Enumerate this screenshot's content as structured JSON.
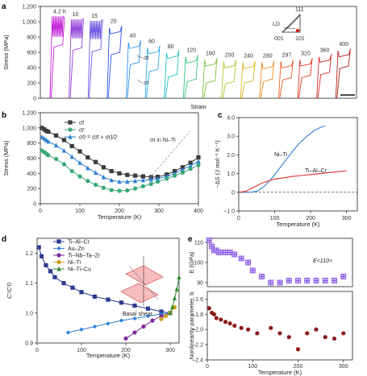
{
  "chart_data": [
    {
      "panel": "a",
      "type": "line",
      "xlabel": "Strain",
      "ylabel": "Stress (MPa)",
      "ylim": [
        0,
        1200
      ],
      "yticks": [
        0,
        200,
        400,
        600,
        800,
        1000,
        1200
      ],
      "ytick_labels": [
        "0",
        "200",
        "400",
        "600",
        "800",
        "1,000",
        "1,200"
      ],
      "annotations": [
        "σt",
        "σr",
        "LD",
        "111",
        "001",
        "101"
      ],
      "series": [
        {
          "name": "4.2 K",
          "color": "#c21fd6",
          "peak": 1050,
          "plateau_up": 950,
          "plateau_down": 700
        },
        {
          "name": "10",
          "color": "#8f3fd9",
          "peak": 1010,
          "plateau_up": 930,
          "plateau_down": 660
        },
        {
          "name": "15",
          "color": "#6b52e3",
          "peak": 990,
          "plateau_up": 920,
          "plateau_down": 640
        },
        {
          "name": "20",
          "color": "#2f55e8",
          "peak": 920,
          "plateau_up": 840,
          "plateau_down": 600
        },
        {
          "name": "40",
          "color": "#2f8fea",
          "peak": 730,
          "plateau_up": 650,
          "plateau_down": 470
        },
        {
          "name": "60",
          "color": "#2aa9e8",
          "peak": 660,
          "plateau_up": 580,
          "plateau_down": 380
        },
        {
          "name": "80",
          "color": "#21c4c8",
          "peak": 590,
          "plateau_up": 520,
          "plateau_down": 310
        },
        {
          "name": "120",
          "color": "#33c47e",
          "peak": 540,
          "plateau_up": 460,
          "plateau_down": 250
        },
        {
          "name": "160",
          "color": "#7ac43a",
          "peak": 500,
          "plateau_up": 420,
          "plateau_down": 230
        },
        {
          "name": "200",
          "color": "#b3c72c",
          "peak": 480,
          "plateau_up": 395,
          "plateau_down": 220
        },
        {
          "name": "240",
          "color": "#dbb620",
          "peak": 470,
          "plateau_up": 385,
          "plateau_down": 230
        },
        {
          "name": "280",
          "color": "#ee8a1c",
          "peak": 470,
          "plateau_up": 385,
          "plateau_down": 250
        },
        {
          "name": "297",
          "color": "#ec5b1e",
          "peak": 480,
          "plateau_up": 395,
          "plateau_down": 270
        },
        {
          "name": "320",
          "color": "#e3341f",
          "peak": 500,
          "plateau_up": 420,
          "plateau_down": 300
        },
        {
          "name": "360",
          "color": "#d32a1e",
          "peak": 540,
          "plateau_up": 470,
          "plateau_down": 340
        },
        {
          "name": "400",
          "color": "#b81d1b",
          "peak": 620,
          "plateau_up": 540,
          "plateau_down": 420
        }
      ]
    },
    {
      "panel": "b",
      "type": "line",
      "xlabel": "Temperature (K)",
      "ylabel": "Stress (MPa)",
      "xlim": [
        0,
        400
      ],
      "ylim": [
        0,
        1200
      ],
      "xticks": [
        0,
        100,
        200,
        300,
        400
      ],
      "yticks": [
        0,
        200,
        400,
        600,
        800,
        1000,
        1200
      ],
      "ytick_labels": [
        "0",
        "200",
        "400",
        "600",
        "800",
        "1,000",
        "1,200"
      ],
      "annotation": "σt in Ni–Ti",
      "legend": [
        "σt",
        "σr",
        "σ0 = (σt + σr)/2"
      ],
      "series": [
        {
          "name": "σt",
          "color": "#3a3a3a",
          "marker": "square",
          "x": [
            4,
            10,
            15,
            20,
            40,
            60,
            80,
            100,
            120,
            140,
            160,
            180,
            200,
            220,
            240,
            260,
            280,
            297,
            320,
            340,
            360,
            380,
            400
          ],
          "y": [
            1000,
            980,
            960,
            950,
            900,
            840,
            760,
            690,
            610,
            550,
            480,
            430,
            400,
            380,
            370,
            360,
            350,
            355,
            385,
            430,
            480,
            540,
            610
          ]
        },
        {
          "name": "σ0",
          "color": "#2d7fd1",
          "marker": "triangle",
          "x": [
            4,
            10,
            15,
            20,
            40,
            60,
            80,
            100,
            120,
            140,
            160,
            180,
            200,
            220,
            240,
            260,
            280,
            297,
            320,
            340,
            360,
            380,
            400
          ],
          "y": [
            880,
            860,
            840,
            820,
            770,
            700,
            620,
            540,
            470,
            410,
            350,
            310,
            290,
            290,
            300,
            310,
            320,
            330,
            360,
            400,
            450,
            500,
            560
          ]
        },
        {
          "name": "σr",
          "color": "#3aa876",
          "marker": "circle",
          "x": [
            4,
            10,
            15,
            20,
            40,
            60,
            80,
            100,
            120,
            140,
            160,
            180,
            200,
            220,
            240,
            260,
            280,
            297,
            320,
            340,
            360,
            380,
            400
          ],
          "y": [
            700,
            680,
            660,
            640,
            590,
            520,
            430,
            360,
            300,
            250,
            210,
            180,
            170,
            175,
            200,
            230,
            260,
            290,
            330,
            370,
            410,
            460,
            510
          ]
        },
        {
          "name": "σt in Ni–Ti",
          "color": "#999999",
          "dashed": true,
          "x": [
            270,
            380
          ],
          "y": [
            300,
            960
          ]
        }
      ]
    },
    {
      "panel": "c",
      "type": "line",
      "xlabel": "Temperature (K)",
      "ylabel": "−ΔS (J mol⁻¹ K⁻¹)",
      "xlim": [
        0,
        330
      ],
      "ylim": [
        -1,
        4
      ],
      "xticks": [
        0,
        100,
        200,
        300
      ],
      "yticks": [
        -1,
        0,
        1,
        2,
        3,
        4
      ],
      "ytick_labels": [
        "–1.0",
        "0",
        "1.0",
        "2.0",
        "3.0",
        "4.0"
      ],
      "series": [
        {
          "name": "Ni–Ti",
          "color": "#2f7fd6",
          "x": [
            0,
            30,
            50,
            70,
            90,
            110,
            130,
            150,
            170,
            190,
            210,
            230,
            240
          ],
          "y": [
            0,
            0,
            0.05,
            0.3,
            0.7,
            1.2,
            1.7,
            2.2,
            2.65,
            3.0,
            3.3,
            3.5,
            3.55
          ]
        },
        {
          "name": "Ti–Al–Cr",
          "color": "#e0302a",
          "x": [
            0,
            20,
            40,
            60,
            80,
            100,
            150,
            200,
            250,
            300
          ],
          "y": [
            0,
            0.05,
            0.25,
            0.45,
            0.6,
            0.7,
            0.85,
            0.95,
            1.05,
            1.15
          ]
        }
      ]
    },
    {
      "panel": "d",
      "type": "line",
      "xlabel": "Temperature (K)",
      "ylabel": "C'/C'0",
      "xlim": [
        0,
        320
      ],
      "ylim": [
        0.9,
        1.25
      ],
      "xticks": [
        0,
        100,
        200,
        300
      ],
      "yticks": [
        0.9,
        1.0,
        1.1,
        1.2
      ],
      "ytick_labels": [
        "0.9",
        "1.0",
        "1.1",
        "1.2"
      ],
      "inset_label": "Basal shear",
      "series": [
        {
          "name": "Ti–Al–Cr",
          "color": "#2b3a8f",
          "marker": "square",
          "x": [
            4,
            10,
            20,
            30,
            40,
            60,
            80,
            100,
            130,
            160,
            190,
            220,
            250,
            280,
            300
          ],
          "y": [
            1.22,
            1.19,
            1.16,
            1.14,
            1.12,
            1.1,
            1.085,
            1.07,
            1.055,
            1.045,
            1.035,
            1.025,
            1.015,
            1.005,
            1.0
          ]
        },
        {
          "name": "Au–Zn",
          "color": "#2f7fd6",
          "marker": "diamond",
          "x": [
            70,
            100,
            130,
            160,
            190,
            220,
            250,
            280,
            300
          ],
          "y": [
            0.935,
            0.945,
            0.955,
            0.965,
            0.975,
            0.982,
            0.99,
            0.997,
            1.0
          ]
        },
        {
          "name": "Ti–Nb–Ta–Zr",
          "color": "#7b2b9a",
          "marker": "circle",
          "x": [
            200,
            220,
            240,
            260,
            280,
            300
          ],
          "y": [
            0.915,
            0.935,
            0.955,
            0.975,
            0.99,
            1.0
          ]
        },
        {
          "name": "Ni–Ti",
          "color": "#c9a21f",
          "marker": "circle",
          "x": [
            280,
            290,
            300,
            310
          ],
          "y": [
            0.98,
            0.99,
            1.0,
            1.02
          ]
        },
        {
          "name": "Ni–Ti–Cu",
          "color": "#2e8b2e",
          "marker": "triangle",
          "x": [
            300,
            305,
            310,
            315,
            320
          ],
          "y": [
            1.0,
            1.02,
            1.05,
            1.08,
            1.12
          ]
        }
      ]
    },
    {
      "panel": "e-top",
      "type": "scatter",
      "ylabel": "E (GPa)",
      "annotation": "E<110>",
      "xlim": [
        0,
        320
      ],
      "ylim": [
        88,
        112
      ],
      "yticks": [
        90,
        100,
        110
      ],
      "series": [
        {
          "name": "E<110>",
          "color": "#7b3fe0",
          "marker": "square-plus",
          "x": [
            4,
            10,
            15,
            20,
            25,
            30,
            40,
            50,
            60,
            75,
            90,
            100,
            120,
            140,
            160,
            180,
            200,
            220,
            240,
            260,
            280,
            300
          ],
          "y": [
            111,
            108,
            106,
            106,
            105,
            105,
            105,
            105,
            104,
            102,
            100,
            96,
            93,
            90,
            90,
            91,
            91,
            91,
            91,
            91,
            91,
            93
          ]
        }
      ]
    },
    {
      "panel": "e-bottom",
      "type": "scatter",
      "xlabel": "Temperature (K)",
      "ylabel": "Nonlinearity parameter, b",
      "xlim": [
        0,
        320
      ],
      "ylim": [
        -2.4,
        -1.5
      ],
      "xticks": [
        0,
        100,
        200,
        300
      ],
      "yticks": [
        -2.4,
        -2.2,
        -2.0,
        -1.8,
        -1.6
      ],
      "ytick_labels": [
        "–2.4",
        "–2.2",
        "–2.0",
        "–1.8",
        "–1.6"
      ],
      "series": [
        {
          "name": "b",
          "color": "#8b1a1a",
          "marker": "circle",
          "x": [
            4,
            10,
            15,
            20,
            30,
            40,
            50,
            60,
            75,
            90,
            110,
            140,
            160,
            180,
            200,
            220,
            240,
            260,
            280,
            300
          ],
          "y": [
            -1.72,
            -1.78,
            -1.8,
            -1.85,
            -1.87,
            -1.9,
            -1.92,
            -1.95,
            -1.98,
            -2.0,
            -2.05,
            -1.98,
            -2.05,
            -2.1,
            -2.26,
            -2.05,
            -2.0,
            -2.1,
            -2.12,
            -2.05
          ]
        }
      ]
    }
  ],
  "labels": {
    "a": "a",
    "b": "b",
    "c": "c",
    "d": "d",
    "e": "e"
  }
}
